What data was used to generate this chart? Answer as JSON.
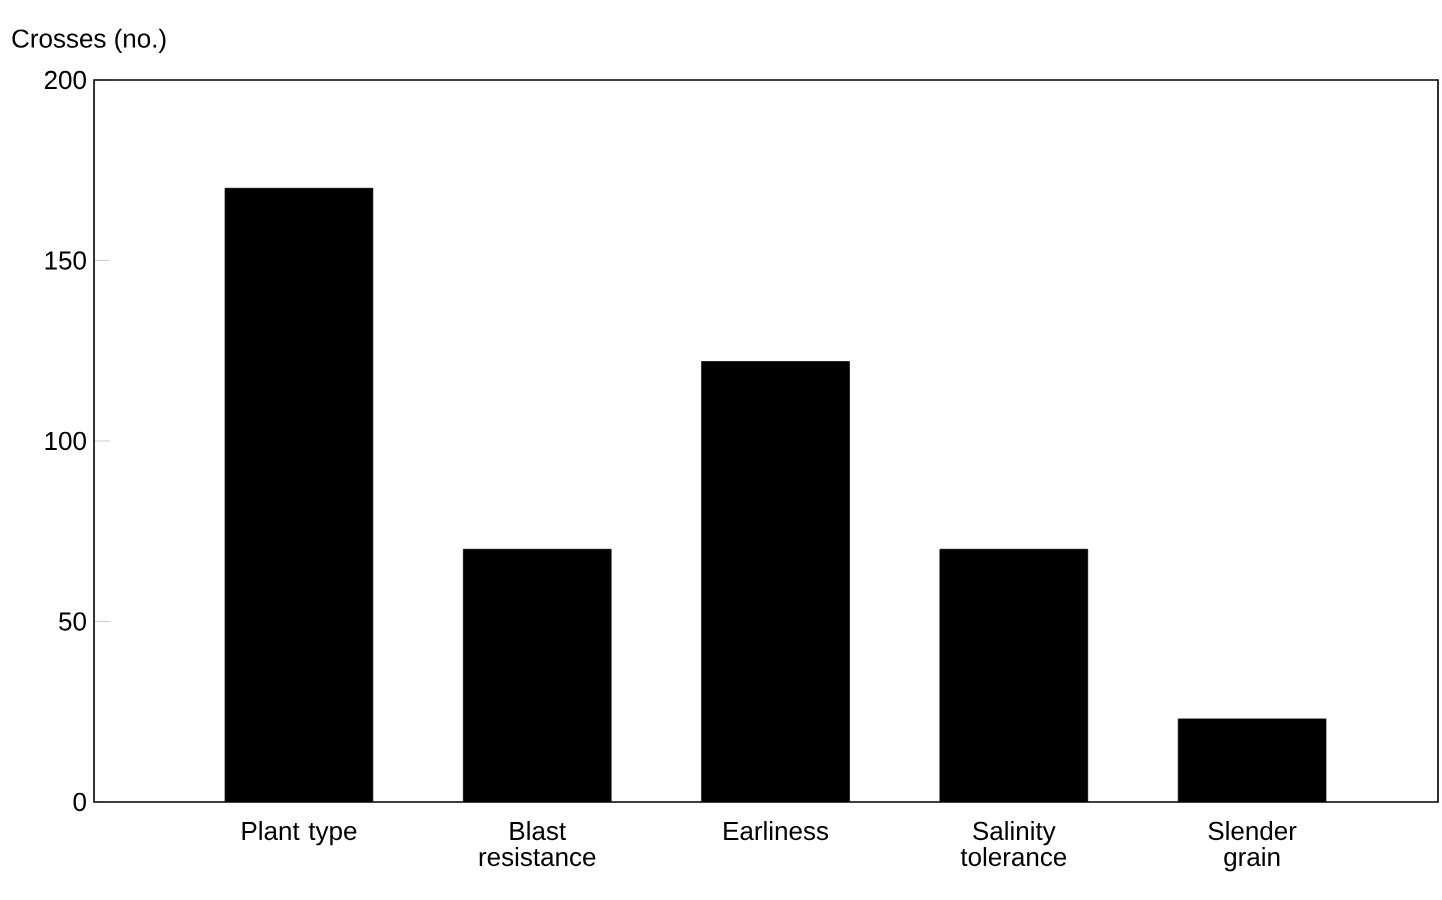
{
  "chart_data": {
    "type": "bar",
    "ylabel": "Crosses (no.)",
    "categories": [
      "Plant type",
      "Blast resistance",
      "Earliness",
      "Salinity tolerance",
      "Slender grain"
    ],
    "values": [
      170,
      70,
      122,
      70,
      23
    ],
    "color": "#000000",
    "ylim": [
      0,
      200
    ],
    "yticks": [
      0,
      50,
      100,
      150,
      200
    ],
    "grid": false
  }
}
